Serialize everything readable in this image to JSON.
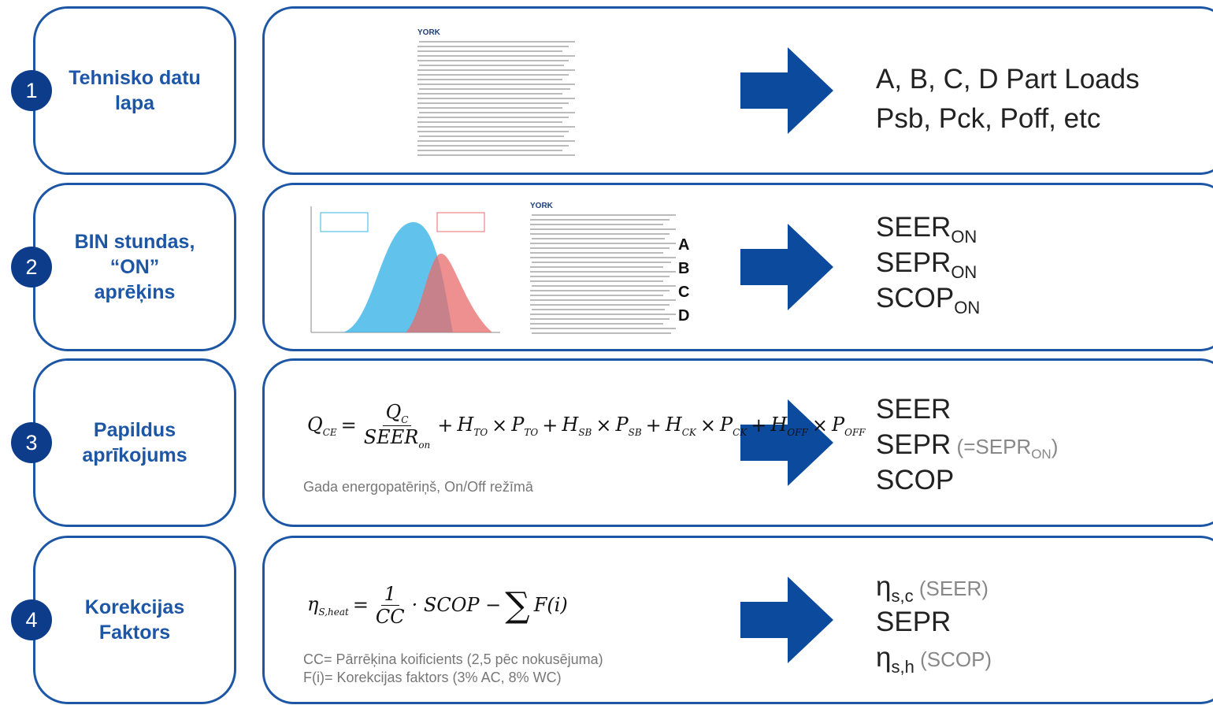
{
  "steps": [
    {
      "number": "1",
      "label": "Tehnisko datu lapa",
      "doc_logo": "YORK",
      "results": [
        {
          "main": "A, B, C, D Part Loads"
        },
        {
          "main": "Psb, Pck, Poff, etc"
        }
      ]
    },
    {
      "number": "2",
      "label": "BIN stundas, “ON” aprēķins",
      "doc_logo": "YORK",
      "letters": [
        "A",
        "B",
        "C",
        "D"
      ],
      "results": [
        {
          "main": "SEER",
          "sub": "ON"
        },
        {
          "main": "SEPR",
          "sub": "ON"
        },
        {
          "main": "SCOP",
          "sub": "ON"
        }
      ]
    },
    {
      "number": "3",
      "label": "Papildus aprīkojums",
      "formula": {
        "lhs": [
          {
            "t": "Q",
            "sub": "CE"
          }
        ],
        "eq": "=",
        "num": [
          {
            "t": "Q",
            "sub": "C"
          }
        ],
        "den": [
          {
            "t": "SEER",
            "sub": "on"
          }
        ],
        "rest": [
          {
            "t": "+"
          },
          {
            "t": "H",
            "sub": "TO"
          },
          {
            "t": "×"
          },
          {
            "t": "P",
            "sub": "TO"
          },
          {
            "t": "+"
          },
          {
            "t": "H",
            "sub": "SB"
          },
          {
            "t": "×"
          },
          {
            "t": "P",
            "sub": "SB"
          },
          {
            "t": "+"
          },
          {
            "t": "H",
            "sub": "CK"
          },
          {
            "t": "×"
          },
          {
            "t": "P",
            "sub": "CK"
          },
          {
            "t": "+"
          },
          {
            "t": "H",
            "sub": "OFF"
          },
          {
            "t": "×"
          },
          {
            "t": "P",
            "sub": "OFF"
          }
        ]
      },
      "notes": [
        "Gada energopatēriņš, On/Off režīmā"
      ],
      "results": [
        {
          "main": "SEER"
        },
        {
          "main": "SEPR",
          "note": "(=SEPR",
          "note_sub": "ON",
          "note_end": ")"
        },
        {
          "main": "SCOP"
        }
      ]
    },
    {
      "number": "4",
      "label": "Korekcijas Faktors",
      "formula": {
        "lhs": [
          {
            "t": "η",
            "sub": "S,heat"
          }
        ],
        "eq": "=",
        "num": [
          {
            "t": "1"
          }
        ],
        "den": [
          {
            "t": "CC"
          }
        ],
        "rest": [
          {
            "t": "· SCOP −"
          },
          {
            "t": "∑",
            "big": true
          },
          {
            "t": "F(i)"
          }
        ]
      },
      "notes": [
        "CC= Pārrēķina koificients (2,5 pēc nokusējuma)",
        "F(i)= Korekcijas faktors (3% AC, 8% WC)"
      ],
      "results": [
        {
          "main": "η",
          "sub": "s,c",
          "note": "(SEER)"
        },
        {
          "main": "SEPR"
        },
        {
          "main": "η",
          "sub": "s,h",
          "note": "(SCOP)"
        }
      ]
    }
  ]
}
